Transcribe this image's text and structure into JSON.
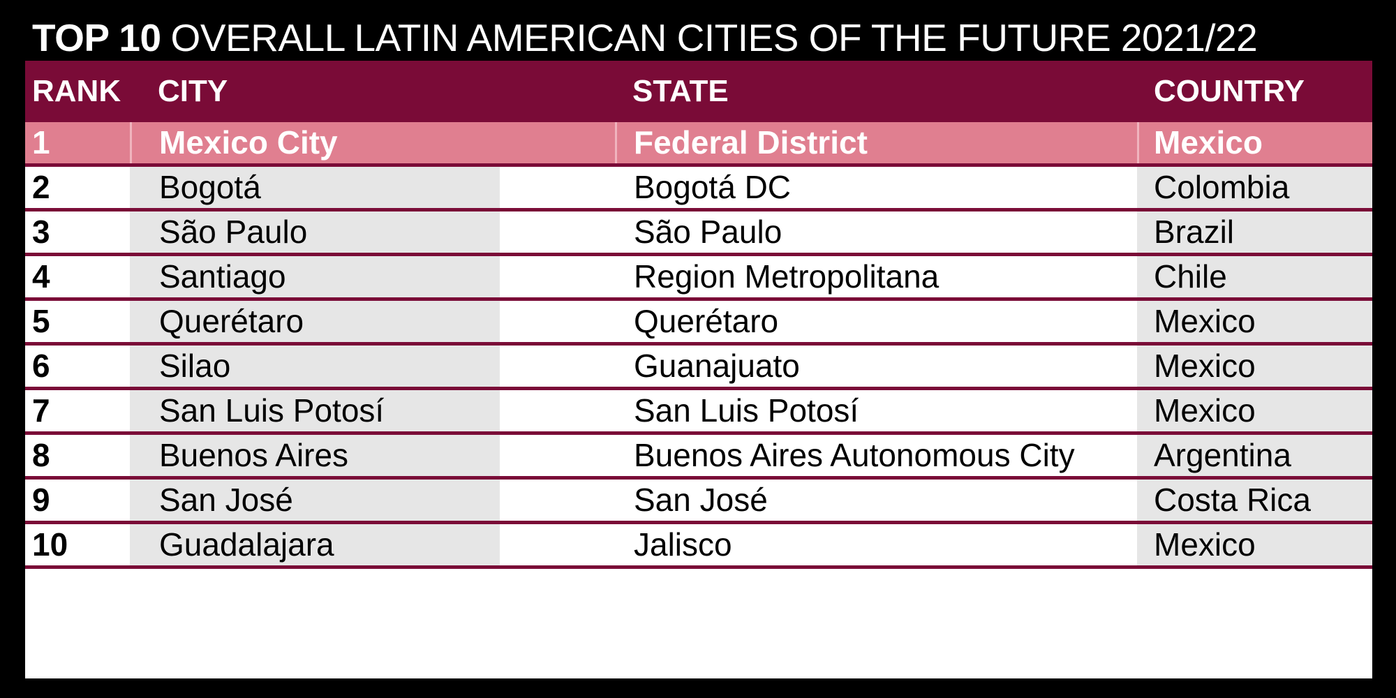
{
  "title": {
    "lead": "TOP 10",
    "rest": "OVERALL LATIN AMERICAN CITIES OF THE FUTURE 2021/22"
  },
  "colors": {
    "header_bg": "#7a0b37",
    "highlight_row": "#e07f90",
    "band": "#e6e6e6",
    "separator": "#7a0b37"
  },
  "table": {
    "columns": [
      "RANK",
      "CITY",
      "STATE",
      "COUNTRY"
    ],
    "rows": [
      {
        "rank": "1",
        "city": "Mexico City",
        "state": "Federal District",
        "country": "Mexico"
      },
      {
        "rank": "2",
        "city": "Bogotá",
        "state": "Bogotá DC",
        "country": "Colombia"
      },
      {
        "rank": "3",
        "city": "São Paulo",
        "state": "São Paulo",
        "country": "Brazil"
      },
      {
        "rank": "4",
        "city": "Santiago",
        "state": "Region Metropolitana",
        "country": "Chile"
      },
      {
        "rank": "5",
        "city": "Querétaro",
        "state": "Querétaro",
        "country": "Mexico"
      },
      {
        "rank": "6",
        "city": "Silao",
        "state": "Guanajuato",
        "country": "Mexico"
      },
      {
        "rank": "7",
        "city": "San Luis Potosí",
        "state": "San Luis Potosí",
        "country": "Mexico"
      },
      {
        "rank": "8",
        "city": "Buenos Aires",
        "state": "Buenos Aires Autonomous City",
        "country": "Argentina"
      },
      {
        "rank": "9",
        "city": "San José",
        "state": "San José",
        "country": "Costa Rica"
      },
      {
        "rank": "10",
        "city": "Guadalajara",
        "state": "Jalisco",
        "country": "Mexico"
      }
    ]
  }
}
